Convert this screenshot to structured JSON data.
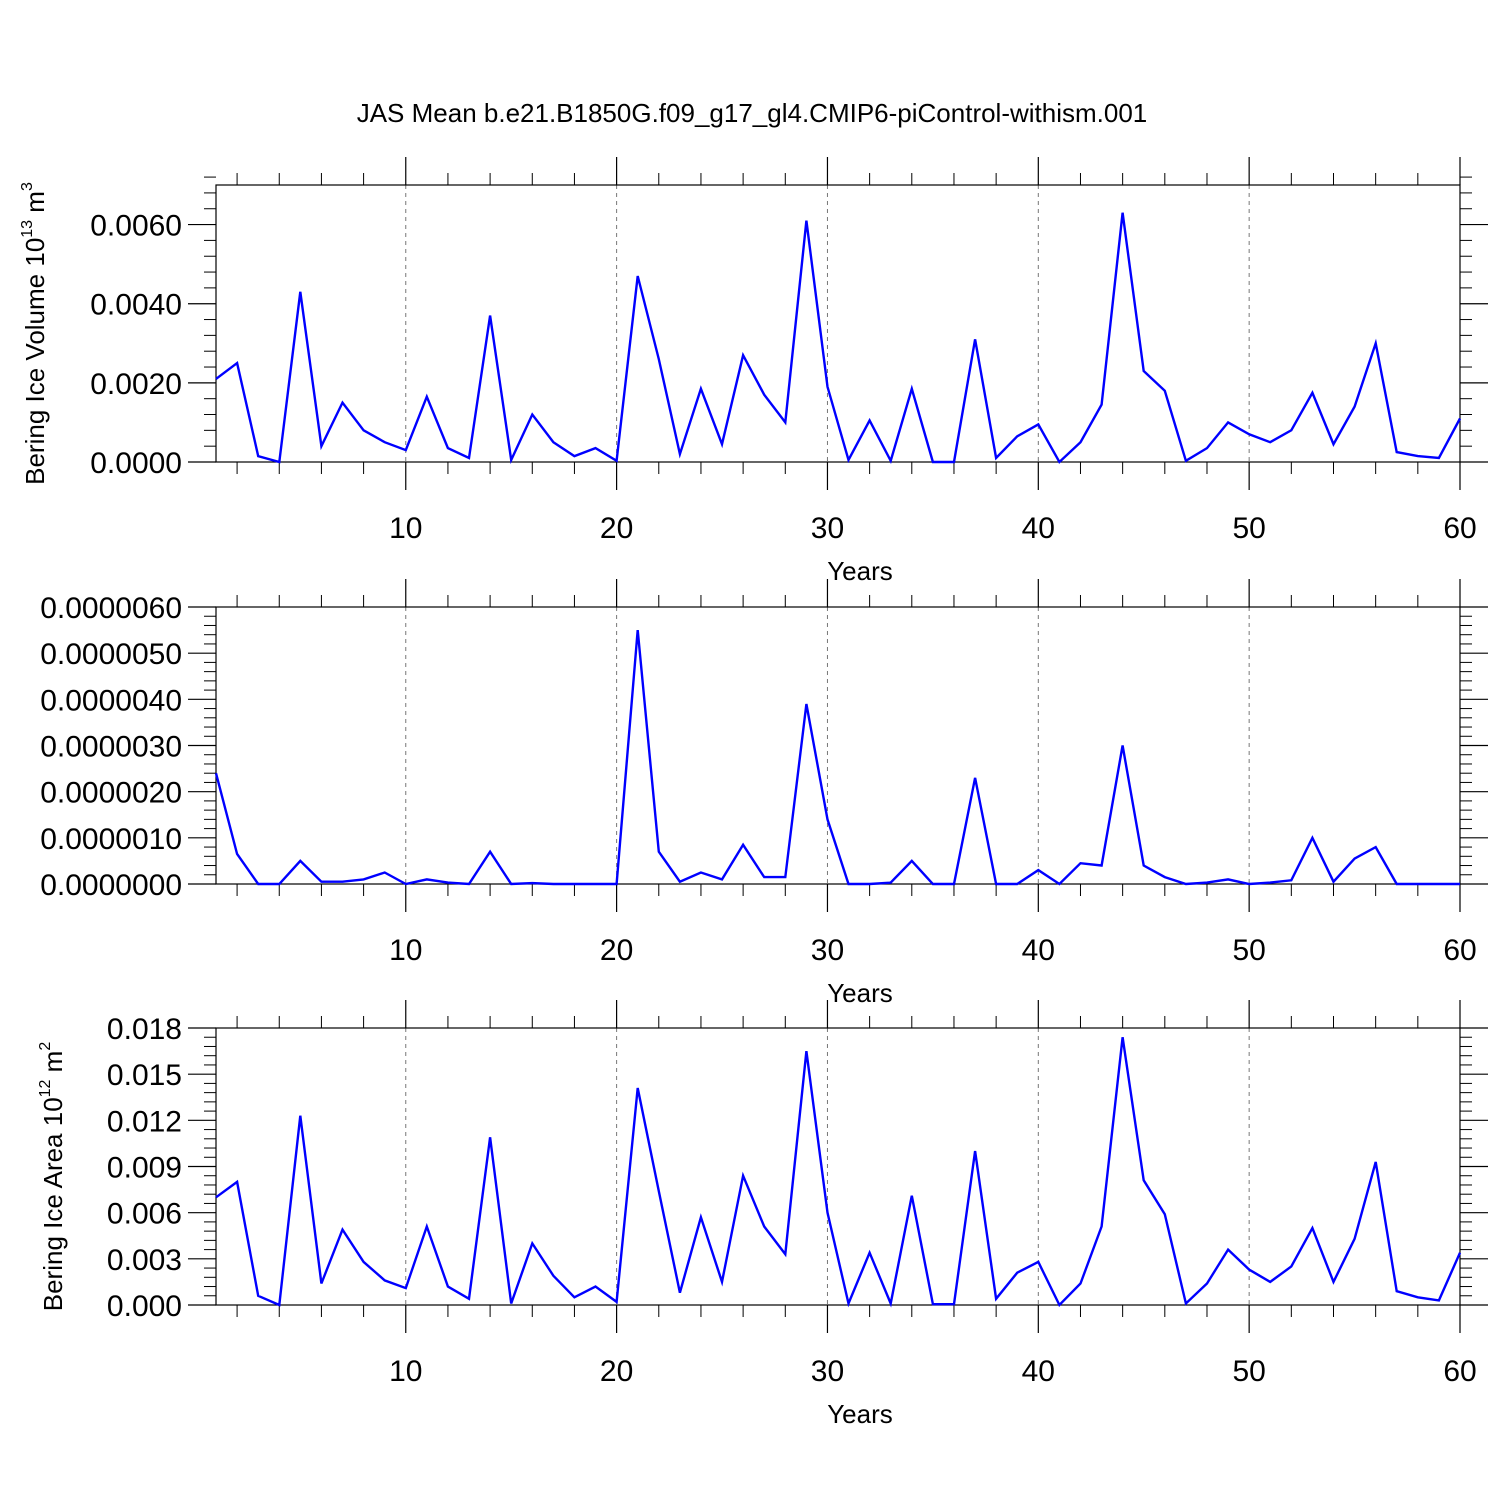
{
  "title": "JAS Mean b.e21.B1850G.f09_g17_gl4.CMIP6-piControl-withism.001",
  "chart_data": [
    {
      "type": "line",
      "xlabel": "Years",
      "ylabel_text": "Bering Ice Volume 10",
      "ylabel_exp": "13",
      "ylabel_unit": " m",
      "ylabel_unit_exp": "3",
      "xlim": [
        1,
        60
      ],
      "ylim": [
        0,
        0.007
      ],
      "xticks": [
        10,
        20,
        30,
        40,
        50,
        60
      ],
      "yticks": [
        0,
        0.002,
        0.004,
        0.006
      ],
      "ytick_labels": [
        "0.0000",
        "0.0020",
        "0.0040",
        "0.0060"
      ],
      "grid": "vertical dashed at major x ticks",
      "color": "#0000ff",
      "x": [
        1,
        2,
        3,
        4,
        5,
        6,
        7,
        8,
        9,
        10,
        11,
        12,
        13,
        14,
        15,
        16,
        17,
        18,
        19,
        20,
        21,
        22,
        23,
        24,
        25,
        26,
        27,
        28,
        29,
        30,
        31,
        32,
        33,
        34,
        35,
        36,
        37,
        38,
        39,
        40,
        41,
        42,
        43,
        44,
        45,
        46,
        47,
        48,
        49,
        50,
        51,
        52,
        53,
        54,
        55,
        56,
        57,
        58,
        59,
        60
      ],
      "y": [
        0.0021,
        0.0025,
        0.00015,
        0.0,
        0.0043,
        0.0004,
        0.0015,
        0.0008,
        0.0005,
        0.0003,
        0.00165,
        0.00035,
        0.0001,
        0.0037,
        5e-05,
        0.0012,
        0.0005,
        0.00015,
        0.00035,
        3e-05,
        0.0047,
        0.0026,
        0.0002,
        0.00185,
        0.00045,
        0.0027,
        0.0017,
        0.001,
        0.0061,
        0.0019,
        5e-05,
        0.00105,
        3e-05,
        0.00185,
        0.0,
        0.0,
        0.0031,
        0.0001,
        0.00065,
        0.00095,
        0.0,
        0.0005,
        0.00145,
        0.0063,
        0.0023,
        0.0018,
        3e-05,
        0.00035,
        0.001,
        0.0007,
        0.0005,
        0.0008,
        0.00175,
        0.00045,
        0.0014,
        0.003,
        0.00025,
        0.00015,
        0.0001,
        0.0011
      ]
    },
    {
      "type": "line",
      "xlabel": "Years",
      "xlim": [
        1,
        60
      ],
      "ylim": [
        0,
        6e-06
      ],
      "xticks": [
        10,
        20,
        30,
        40,
        50,
        60
      ],
      "yticks": [
        0,
        1e-06,
        2e-06,
        3e-06,
        4e-06,
        5e-06,
        6e-06
      ],
      "ytick_labels": [
        "0.0000000",
        "0.0000010",
        "0.0000020",
        "0.0000030",
        "0.0000040",
        "0.0000050",
        "0.0000060"
      ],
      "grid": "vertical dashed at major x ticks",
      "color": "#0000ff",
      "x": [
        1,
        2,
        3,
        4,
        5,
        6,
        7,
        8,
        9,
        10,
        11,
        12,
        13,
        14,
        15,
        16,
        17,
        18,
        19,
        20,
        21,
        22,
        23,
        24,
        25,
        26,
        27,
        28,
        29,
        30,
        31,
        32,
        33,
        34,
        35,
        36,
        37,
        38,
        39,
        40,
        41,
        42,
        43,
        44,
        45,
        46,
        47,
        48,
        49,
        50,
        51,
        52,
        53,
        54,
        55,
        56,
        57,
        58,
        59,
        60
      ],
      "y": [
        2.4e-06,
        6.5e-07,
        0.0,
        0.0,
        5e-07,
        5e-08,
        5e-08,
        1e-07,
        2.5e-07,
        0.0,
        1e-07,
        3e-08,
        0.0,
        7e-07,
        0.0,
        2e-08,
        0.0,
        0.0,
        0.0,
        0.0,
        5.5e-06,
        7e-07,
        5e-08,
        2.5e-07,
        1e-07,
        8.5e-07,
        1.5e-07,
        1.5e-07,
        3.9e-06,
        1.4e-06,
        0.0,
        0.0,
        3e-08,
        5e-07,
        0.0,
        0.0,
        2.3e-06,
        0.0,
        0.0,
        3e-07,
        0.0,
        4.5e-07,
        4e-07,
        3e-06,
        4e-07,
        1.5e-07,
        0.0,
        3e-08,
        1e-07,
        0.0,
        3e-08,
        8e-08,
        1e-06,
        5e-08,
        5.5e-07,
        8e-07,
        0.0,
        0.0,
        0.0,
        0.0
      ]
    },
    {
      "type": "line",
      "xlabel": "Years",
      "ylabel_text": "Bering Ice Area 10",
      "ylabel_exp": "12",
      "ylabel_unit": " m",
      "ylabel_unit_exp": "2",
      "xlim": [
        1,
        60
      ],
      "ylim": [
        0,
        0.018
      ],
      "xticks": [
        10,
        20,
        30,
        40,
        50,
        60
      ],
      "yticks": [
        0,
        0.003,
        0.006,
        0.009,
        0.012,
        0.015,
        0.018
      ],
      "ytick_labels": [
        "0.000",
        "0.003",
        "0.006",
        "0.009",
        "0.012",
        "0.015",
        "0.018"
      ],
      "grid": "vertical dashed at major x ticks",
      "color": "#0000ff",
      "x": [
        1,
        2,
        3,
        4,
        5,
        6,
        7,
        8,
        9,
        10,
        11,
        12,
        13,
        14,
        15,
        16,
        17,
        18,
        19,
        20,
        21,
        22,
        23,
        24,
        25,
        26,
        27,
        28,
        29,
        30,
        31,
        32,
        33,
        34,
        35,
        36,
        37,
        38,
        39,
        40,
        41,
        42,
        43,
        44,
        45,
        46,
        47,
        48,
        49,
        50,
        51,
        52,
        53,
        54,
        55,
        56,
        57,
        58,
        59,
        60
      ],
      "y": [
        0.007,
        0.008,
        0.0006,
        0.0,
        0.0123,
        0.0014,
        0.0049,
        0.0028,
        0.0016,
        0.0011,
        0.0051,
        0.0012,
        0.0004,
        0.0109,
        0.0001,
        0.004,
        0.0019,
        0.0005,
        0.0012,
        0.0002,
        0.0141,
        0.0074,
        0.0008,
        0.0057,
        0.0015,
        0.0084,
        0.0051,
        0.0033,
        0.0165,
        0.006,
        0.0001,
        0.0034,
        0.0001,
        0.0071,
        5e-05,
        5e-05,
        0.01,
        0.0004,
        0.0021,
        0.0028,
        0.0,
        0.0014,
        0.0051,
        0.0174,
        0.0081,
        0.0059,
        0.0001,
        0.0014,
        0.0036,
        0.0023,
        0.0015,
        0.0025,
        0.005,
        0.0015,
        0.0043,
        0.0093,
        0.0009,
        0.0005,
        0.0003,
        0.0034
      ]
    }
  ]
}
